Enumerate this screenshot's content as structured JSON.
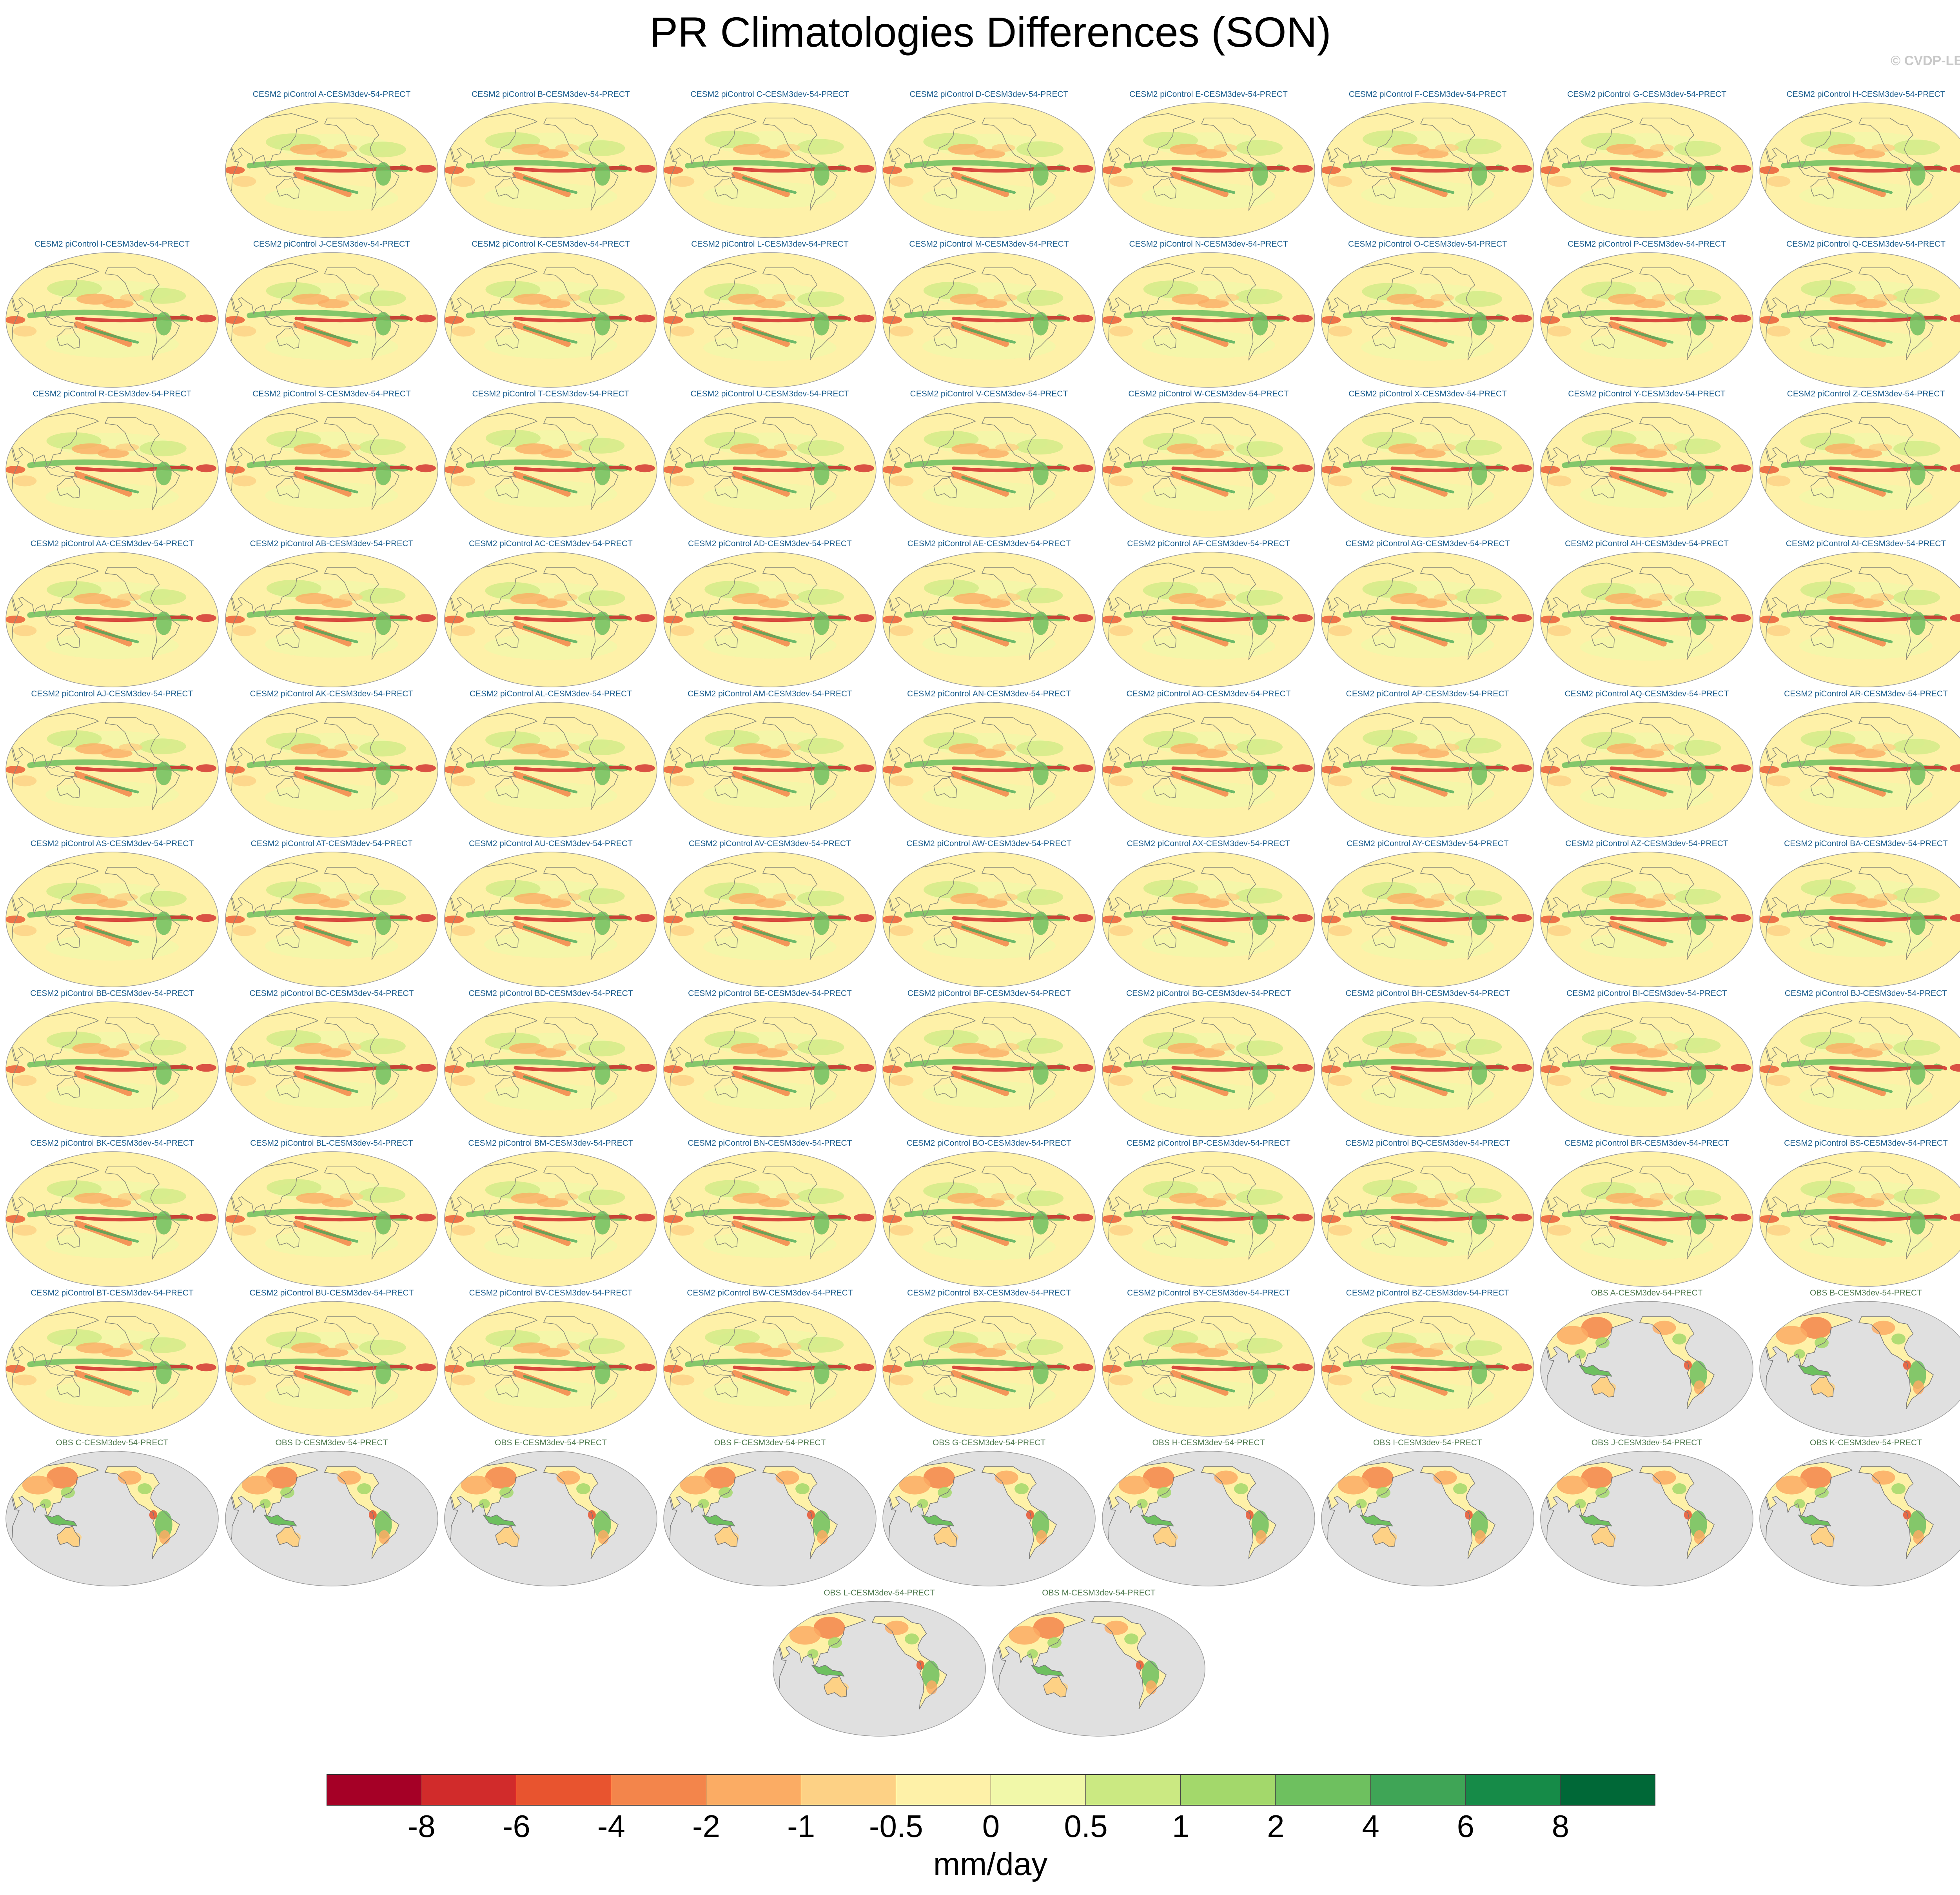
{
  "figure": {
    "title": "PR Climatologies Differences (SON)",
    "watermark": "© CVDP-LE"
  },
  "chart_data": {
    "type": "map-panels",
    "projection": "Robinson (Pacific-centered)",
    "variable": "PRECT",
    "season": "SON",
    "panels": [
      {
        "label": "CESM2 piControl A-CESM3dev-54-PRECT",
        "kind": "diff"
      },
      {
        "label": "CESM2 piControl B-CESM3dev-54-PRECT",
        "kind": "diff"
      },
      {
        "label": "CESM2 piControl C-CESM3dev-54-PRECT",
        "kind": "diff"
      },
      {
        "label": "CESM2 piControl D-CESM3dev-54-PRECT",
        "kind": "diff"
      },
      {
        "label": "CESM2 piControl E-CESM3dev-54-PRECT",
        "kind": "diff"
      },
      {
        "label": "CESM2 piControl F-CESM3dev-54-PRECT",
        "kind": "diff"
      },
      {
        "label": "CESM2 piControl G-CESM3dev-54-PRECT",
        "kind": "diff"
      },
      {
        "label": "CESM2 piControl H-CESM3dev-54-PRECT",
        "kind": "diff"
      },
      {
        "label": "CESM2 piControl I-CESM3dev-54-PRECT",
        "kind": "diff"
      },
      {
        "label": "CESM2 piControl J-CESM3dev-54-PRECT",
        "kind": "diff"
      },
      {
        "label": "CESM2 piControl K-CESM3dev-54-PRECT",
        "kind": "diff"
      },
      {
        "label": "CESM2 piControl L-CESM3dev-54-PRECT",
        "kind": "diff"
      },
      {
        "label": "CESM2 piControl M-CESM3dev-54-PRECT",
        "kind": "diff"
      },
      {
        "label": "CESM2 piControl N-CESM3dev-54-PRECT",
        "kind": "diff"
      },
      {
        "label": "CESM2 piControl O-CESM3dev-54-PRECT",
        "kind": "diff"
      },
      {
        "label": "CESM2 piControl P-CESM3dev-54-PRECT",
        "kind": "diff"
      },
      {
        "label": "CESM2 piControl Q-CESM3dev-54-PRECT",
        "kind": "diff"
      },
      {
        "label": "CESM2 piControl R-CESM3dev-54-PRECT",
        "kind": "diff"
      },
      {
        "label": "CESM2 piControl S-CESM3dev-54-PRECT",
        "kind": "diff"
      },
      {
        "label": "CESM2 piControl T-CESM3dev-54-PRECT",
        "kind": "diff"
      },
      {
        "label": "CESM2 piControl U-CESM3dev-54-PRECT",
        "kind": "diff"
      },
      {
        "label": "CESM2 piControl V-CESM3dev-54-PRECT",
        "kind": "diff"
      },
      {
        "label": "CESM2 piControl W-CESM3dev-54-PRECT",
        "kind": "diff"
      },
      {
        "label": "CESM2 piControl X-CESM3dev-54-PRECT",
        "kind": "diff"
      },
      {
        "label": "CESM2 piControl Y-CESM3dev-54-PRECT",
        "kind": "diff"
      },
      {
        "label": "CESM2 piControl Z-CESM3dev-54-PRECT",
        "kind": "diff"
      },
      {
        "label": "CESM2 piControl AA-CESM3dev-54-PRECT",
        "kind": "diff"
      },
      {
        "label": "CESM2 piControl AB-CESM3dev-54-PRECT",
        "kind": "diff"
      },
      {
        "label": "CESM2 piControl AC-CESM3dev-54-PRECT",
        "kind": "diff"
      },
      {
        "label": "CESM2 piControl AD-CESM3dev-54-PRECT",
        "kind": "diff"
      },
      {
        "label": "CESM2 piControl AE-CESM3dev-54-PRECT",
        "kind": "diff"
      },
      {
        "label": "CESM2 piControl AF-CESM3dev-54-PRECT",
        "kind": "diff"
      },
      {
        "label": "CESM2 piControl AG-CESM3dev-54-PRECT",
        "kind": "diff"
      },
      {
        "label": "CESM2 piControl AH-CESM3dev-54-PRECT",
        "kind": "diff"
      },
      {
        "label": "CESM2 piControl AI-CESM3dev-54-PRECT",
        "kind": "diff"
      },
      {
        "label": "CESM2 piControl AJ-CESM3dev-54-PRECT",
        "kind": "diff"
      },
      {
        "label": "CESM2 piControl AK-CESM3dev-54-PRECT",
        "kind": "diff"
      },
      {
        "label": "CESM2 piControl AL-CESM3dev-54-PRECT",
        "kind": "diff"
      },
      {
        "label": "CESM2 piControl AM-CESM3dev-54-PRECT",
        "kind": "diff"
      },
      {
        "label": "CESM2 piControl AN-CESM3dev-54-PRECT",
        "kind": "diff"
      },
      {
        "label": "CESM2 piControl AO-CESM3dev-54-PRECT",
        "kind": "diff"
      },
      {
        "label": "CESM2 piControl AP-CESM3dev-54-PRECT",
        "kind": "diff"
      },
      {
        "label": "CESM2 piControl AQ-CESM3dev-54-PRECT",
        "kind": "diff"
      },
      {
        "label": "CESM2 piControl AR-CESM3dev-54-PRECT",
        "kind": "diff"
      },
      {
        "label": "CESM2 piControl AS-CESM3dev-54-PRECT",
        "kind": "diff"
      },
      {
        "label": "CESM2 piControl AT-CESM3dev-54-PRECT",
        "kind": "diff"
      },
      {
        "label": "CESM2 piControl AU-CESM3dev-54-PRECT",
        "kind": "diff"
      },
      {
        "label": "CESM2 piControl AV-CESM3dev-54-PRECT",
        "kind": "diff"
      },
      {
        "label": "CESM2 piControl AW-CESM3dev-54-PRECT",
        "kind": "diff"
      },
      {
        "label": "CESM2 piControl AX-CESM3dev-54-PRECT",
        "kind": "diff"
      },
      {
        "label": "CESM2 piControl AY-CESM3dev-54-PRECT",
        "kind": "diff"
      },
      {
        "label": "CESM2 piControl AZ-CESM3dev-54-PRECT",
        "kind": "diff"
      },
      {
        "label": "CESM2 piControl BA-CESM3dev-54-PRECT",
        "kind": "diff"
      },
      {
        "label": "CESM2 piControl BB-CESM3dev-54-PRECT",
        "kind": "diff"
      },
      {
        "label": "CESM2 piControl BC-CESM3dev-54-PRECT",
        "kind": "diff"
      },
      {
        "label": "CESM2 piControl BD-CESM3dev-54-PRECT",
        "kind": "diff"
      },
      {
        "label": "CESM2 piControl BE-CESM3dev-54-PRECT",
        "kind": "diff"
      },
      {
        "label": "CESM2 piControl BF-CESM3dev-54-PRECT",
        "kind": "diff"
      },
      {
        "label": "CESM2 piControl BG-CESM3dev-54-PRECT",
        "kind": "diff"
      },
      {
        "label": "CESM2 piControl BH-CESM3dev-54-PRECT",
        "kind": "diff"
      },
      {
        "label": "CESM2 piControl BI-CESM3dev-54-PRECT",
        "kind": "diff"
      },
      {
        "label": "CESM2 piControl BJ-CESM3dev-54-PRECT",
        "kind": "diff"
      },
      {
        "label": "CESM2 piControl BK-CESM3dev-54-PRECT",
        "kind": "diff"
      },
      {
        "label": "CESM2 piControl BL-CESM3dev-54-PRECT",
        "kind": "diff"
      },
      {
        "label": "CESM2 piControl BM-CESM3dev-54-PRECT",
        "kind": "diff"
      },
      {
        "label": "CESM2 piControl BN-CESM3dev-54-PRECT",
        "kind": "diff"
      },
      {
        "label": "CESM2 piControl BO-CESM3dev-54-PRECT",
        "kind": "diff"
      },
      {
        "label": "CESM2 piControl BP-CESM3dev-54-PRECT",
        "kind": "diff"
      },
      {
        "label": "CESM2 piControl BQ-CESM3dev-54-PRECT",
        "kind": "diff"
      },
      {
        "label": "CESM2 piControl BR-CESM3dev-54-PRECT",
        "kind": "diff"
      },
      {
        "label": "CESM2 piControl BS-CESM3dev-54-PRECT",
        "kind": "diff"
      },
      {
        "label": "CESM2 piControl BT-CESM3dev-54-PRECT",
        "kind": "diff"
      },
      {
        "label": "CESM2 piControl BU-CESM3dev-54-PRECT",
        "kind": "diff"
      },
      {
        "label": "CESM2 piControl BV-CESM3dev-54-PRECT",
        "kind": "diff"
      },
      {
        "label": "CESM2 piControl BW-CESM3dev-54-PRECT",
        "kind": "diff"
      },
      {
        "label": "CESM2 piControl BX-CESM3dev-54-PRECT",
        "kind": "diff"
      },
      {
        "label": "CESM2 piControl BY-CESM3dev-54-PRECT",
        "kind": "diff"
      },
      {
        "label": "CESM2 piControl BZ-CESM3dev-54-PRECT",
        "kind": "diff"
      },
      {
        "label": "OBS A-CESM3dev-54-PRECT",
        "kind": "obs"
      },
      {
        "label": "OBS B-CESM3dev-54-PRECT",
        "kind": "obs"
      },
      {
        "label": "OBS C-CESM3dev-54-PRECT",
        "kind": "obs"
      },
      {
        "label": "OBS D-CESM3dev-54-PRECT",
        "kind": "obs"
      },
      {
        "label": "OBS E-CESM3dev-54-PRECT",
        "kind": "obs"
      },
      {
        "label": "OBS F-CESM3dev-54-PRECT",
        "kind": "obs"
      },
      {
        "label": "OBS G-CESM3dev-54-PRECT",
        "kind": "obs"
      },
      {
        "label": "OBS H-CESM3dev-54-PRECT",
        "kind": "obs"
      },
      {
        "label": "OBS I-CESM3dev-54-PRECT",
        "kind": "obs"
      },
      {
        "label": "OBS J-CESM3dev-54-PRECT",
        "kind": "obs"
      },
      {
        "label": "OBS K-CESM3dev-54-PRECT",
        "kind": "obs"
      },
      {
        "label": "OBS L-CESM3dev-54-PRECT",
        "kind": "obs"
      },
      {
        "label": "OBS M-CESM3dev-54-PRECT",
        "kind": "obs"
      }
    ],
    "colorbar": {
      "unit": "mm/day",
      "tick_labels": [
        "-8",
        "-6",
        "-4",
        "-2",
        "-1",
        "-0.5",
        "0",
        "0.5",
        "1",
        "2",
        "4",
        "6",
        "8"
      ],
      "colors": [
        "#a50026",
        "#d12b2b",
        "#e8542f",
        "#f3854b",
        "#fbac64",
        "#fdd185",
        "#fef1a8",
        "#f1f8a9",
        "#cbe982",
        "#a3d86b",
        "#6ec05f",
        "#3fa556",
        "#168b48",
        "#006837"
      ]
    },
    "ocean_mask_color": "#e0e0e0"
  }
}
